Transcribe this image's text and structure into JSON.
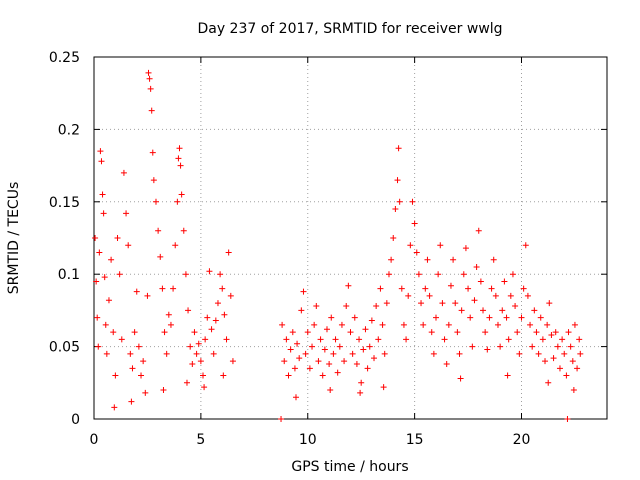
{
  "chart_data": {
    "type": "scatter",
    "title": "Day 237 of 2017, SRMTID for receiver wwlg",
    "xlabel": "GPS time / hours",
    "ylabel": "SRMTID / TECUs",
    "xlim": [
      0,
      24
    ],
    "ylim": [
      0,
      0.25
    ],
    "x_ticks": [
      {
        "value": 0,
        "label": "0"
      },
      {
        "value": 5,
        "label": "5"
      },
      {
        "value": 10,
        "label": "10"
      },
      {
        "value": 15,
        "label": "15"
      },
      {
        "value": 20,
        "label": "20"
      }
    ],
    "y_ticks": [
      {
        "value": 0,
        "label": "0"
      },
      {
        "value": 0.05,
        "label": "0.05"
      },
      {
        "value": 0.1,
        "label": "0.1"
      },
      {
        "value": 0.15,
        "label": "0.15"
      },
      {
        "value": 0.2,
        "label": "0.2"
      },
      {
        "value": 0.25,
        "label": "0.25"
      }
    ],
    "grid": true,
    "marker": "+",
    "series": [
      {
        "name": "SRMTID",
        "color": "#ff0000",
        "points": [
          [
            0.05,
            0.125
          ],
          [
            0.1,
            0.095
          ],
          [
            0.15,
            0.07
          ],
          [
            0.2,
            0.05
          ],
          [
            0.25,
            0.115
          ],
          [
            0.3,
            0.185
          ],
          [
            0.35,
            0.178
          ],
          [
            0.4,
            0.155
          ],
          [
            0.45,
            0.142
          ],
          [
            0.5,
            0.098
          ],
          [
            0.55,
            0.065
          ],
          [
            0.6,
            0.045
          ],
          [
            0.7,
            0.082
          ],
          [
            0.8,
            0.11
          ],
          [
            0.9,
            0.06
          ],
          [
            1.0,
            0.03
          ],
          [
            1.1,
            0.125
          ],
          [
            1.2,
            0.1
          ],
          [
            1.3,
            0.055
          ],
          [
            1.4,
            0.17
          ],
          [
            1.5,
            0.142
          ],
          [
            1.6,
            0.12
          ],
          [
            1.7,
            0.045
          ],
          [
            1.8,
            0.035
          ],
          [
            1.9,
            0.06
          ],
          [
            2.0,
            0.088
          ],
          [
            2.1,
            0.05
          ],
          [
            2.2,
            0.03
          ],
          [
            2.3,
            0.04
          ],
          [
            2.4,
            0.018
          ],
          [
            2.5,
            0.085
          ],
          [
            2.55,
            0.239
          ],
          [
            2.6,
            0.235
          ],
          [
            2.65,
            0.228
          ],
          [
            2.7,
            0.213
          ],
          [
            2.75,
            0.184
          ],
          [
            2.8,
            0.165
          ],
          [
            2.9,
            0.15
          ],
          [
            3.0,
            0.13
          ],
          [
            3.1,
            0.112
          ],
          [
            3.2,
            0.09
          ],
          [
            3.3,
            0.06
          ],
          [
            3.4,
            0.045
          ],
          [
            3.5,
            0.072
          ],
          [
            3.6,
            0.065
          ],
          [
            3.7,
            0.09
          ],
          [
            3.8,
            0.12
          ],
          [
            3.9,
            0.15
          ],
          [
            3.95,
            0.18
          ],
          [
            4.0,
            0.187
          ],
          [
            4.05,
            0.175
          ],
          [
            4.1,
            0.155
          ],
          [
            4.2,
            0.13
          ],
          [
            4.3,
            0.1
          ],
          [
            4.4,
            0.075
          ],
          [
            4.5,
            0.05
          ],
          [
            4.6,
            0.038
          ],
          [
            4.7,
            0.06
          ],
          [
            4.8,
            0.045
          ],
          [
            4.9,
            0.052
          ],
          [
            5.0,
            0.04
          ],
          [
            5.1,
            0.03
          ],
          [
            5.2,
            0.055
          ],
          [
            5.3,
            0.07
          ],
          [
            5.4,
            0.102
          ],
          [
            5.5,
            0.062
          ],
          [
            5.6,
            0.045
          ],
          [
            5.7,
            0.068
          ],
          [
            5.8,
            0.08
          ],
          [
            5.9,
            0.1
          ],
          [
            6.0,
            0.09
          ],
          [
            6.1,
            0.072
          ],
          [
            6.2,
            0.055
          ],
          [
            6.3,
            0.115
          ],
          [
            6.4,
            0.085
          ],
          [
            6.5,
            0.04
          ],
          [
            0.95,
            0.008
          ],
          [
            1.75,
            0.012
          ],
          [
            3.25,
            0.02
          ],
          [
            4.35,
            0.025
          ],
          [
            5.15,
            0.022
          ],
          [
            6.05,
            0.03
          ],
          [
            8.75,
            0.0
          ],
          [
            8.8,
            0.065
          ],
          [
            8.9,
            0.04
          ],
          [
            9.0,
            0.055
          ],
          [
            9.1,
            0.03
          ],
          [
            9.2,
            0.048
          ],
          [
            9.3,
            0.06
          ],
          [
            9.4,
            0.035
          ],
          [
            9.5,
            0.052
          ],
          [
            9.6,
            0.042
          ],
          [
            9.7,
            0.075
          ],
          [
            9.8,
            0.088
          ],
          [
            9.9,
            0.045
          ],
          [
            10.0,
            0.06
          ],
          [
            10.1,
            0.035
          ],
          [
            10.2,
            0.05
          ],
          [
            10.3,
            0.065
          ],
          [
            10.4,
            0.078
          ],
          [
            10.5,
            0.04
          ],
          [
            10.6,
            0.055
          ],
          [
            10.7,
            0.03
          ],
          [
            10.8,
            0.048
          ],
          [
            10.9,
            0.062
          ],
          [
            11.0,
            0.038
          ],
          [
            11.1,
            0.07
          ],
          [
            11.2,
            0.045
          ],
          [
            11.3,
            0.055
          ],
          [
            11.4,
            0.032
          ],
          [
            11.5,
            0.05
          ],
          [
            11.6,
            0.065
          ],
          [
            11.7,
            0.04
          ],
          [
            11.8,
            0.078
          ],
          [
            11.9,
            0.092
          ],
          [
            12.0,
            0.06
          ],
          [
            12.1,
            0.045
          ],
          [
            12.2,
            0.07
          ],
          [
            12.3,
            0.038
          ],
          [
            12.4,
            0.055
          ],
          [
            12.5,
            0.025
          ],
          [
            12.6,
            0.048
          ],
          [
            12.7,
            0.062
          ],
          [
            12.8,
            0.035
          ],
          [
            12.9,
            0.05
          ],
          [
            13.0,
            0.068
          ],
          [
            13.1,
            0.042
          ],
          [
            13.2,
            0.078
          ],
          [
            13.3,
            0.055
          ],
          [
            13.4,
            0.09
          ],
          [
            13.5,
            0.065
          ],
          [
            13.6,
            0.045
          ],
          [
            13.7,
            0.08
          ],
          [
            13.8,
            0.1
          ],
          [
            13.9,
            0.11
          ],
          [
            14.0,
            0.125
          ],
          [
            14.1,
            0.145
          ],
          [
            14.2,
            0.165
          ],
          [
            14.25,
            0.187
          ],
          [
            14.3,
            0.15
          ],
          [
            14.4,
            0.09
          ],
          [
            14.5,
            0.065
          ],
          [
            14.6,
            0.055
          ],
          [
            14.7,
            0.085
          ],
          [
            14.8,
            0.12
          ],
          [
            14.9,
            0.15
          ],
          [
            15.0,
            0.135
          ],
          [
            15.1,
            0.115
          ],
          [
            15.2,
            0.1
          ],
          [
            15.3,
            0.08
          ],
          [
            15.4,
            0.065
          ],
          [
            15.5,
            0.09
          ],
          [
            15.6,
            0.11
          ],
          [
            15.7,
            0.085
          ],
          [
            15.8,
            0.06
          ],
          [
            15.9,
            0.045
          ],
          [
            16.0,
            0.07
          ],
          [
            16.1,
            0.1
          ],
          [
            16.2,
            0.12
          ],
          [
            16.3,
            0.08
          ],
          [
            16.4,
            0.055
          ],
          [
            16.5,
            0.038
          ],
          [
            16.6,
            0.065
          ],
          [
            16.7,
            0.092
          ],
          [
            16.8,
            0.11
          ],
          [
            16.9,
            0.08
          ],
          [
            17.0,
            0.06
          ],
          [
            17.1,
            0.045
          ],
          [
            17.2,
            0.075
          ],
          [
            17.3,
            0.1
          ],
          [
            17.4,
            0.118
          ],
          [
            17.5,
            0.09
          ],
          [
            17.6,
            0.07
          ],
          [
            17.7,
            0.05
          ],
          [
            17.8,
            0.082
          ],
          [
            17.9,
            0.105
          ],
          [
            18.0,
            0.13
          ],
          [
            18.1,
            0.095
          ],
          [
            18.2,
            0.075
          ],
          [
            18.3,
            0.06
          ],
          [
            18.4,
            0.048
          ],
          [
            18.5,
            0.07
          ],
          [
            18.6,
            0.09
          ],
          [
            18.7,
            0.11
          ],
          [
            18.8,
            0.085
          ],
          [
            18.9,
            0.065
          ],
          [
            19.0,
            0.05
          ],
          [
            19.1,
            0.075
          ],
          [
            19.2,
            0.095
          ],
          [
            19.3,
            0.07
          ],
          [
            19.4,
            0.055
          ],
          [
            19.5,
            0.085
          ],
          [
            19.6,
            0.1
          ],
          [
            19.7,
            0.078
          ],
          [
            19.8,
            0.06
          ],
          [
            19.9,
            0.045
          ],
          [
            20.0,
            0.07
          ],
          [
            20.1,
            0.09
          ],
          [
            20.2,
            0.12
          ],
          [
            20.3,
            0.085
          ],
          [
            20.4,
            0.065
          ],
          [
            20.5,
            0.05
          ],
          [
            20.6,
            0.075
          ],
          [
            20.7,
            0.06
          ],
          [
            20.8,
            0.045
          ],
          [
            20.9,
            0.07
          ],
          [
            21.0,
            0.055
          ],
          [
            21.1,
            0.04
          ],
          [
            21.2,
            0.065
          ],
          [
            21.3,
            0.08
          ],
          [
            21.4,
            0.058
          ],
          [
            21.5,
            0.042
          ],
          [
            21.6,
            0.06
          ],
          [
            21.7,
            0.05
          ],
          [
            21.8,
            0.035
          ],
          [
            21.9,
            0.055
          ],
          [
            22.0,
            0.045
          ],
          [
            22.1,
            0.03
          ],
          [
            22.15,
            0.0
          ],
          [
            22.2,
            0.06
          ],
          [
            22.3,
            0.05
          ],
          [
            22.4,
            0.04
          ],
          [
            22.5,
            0.065
          ],
          [
            22.6,
            0.035
          ],
          [
            22.7,
            0.055
          ],
          [
            22.75,
            0.045
          ],
          [
            9.45,
            0.015
          ],
          [
            11.05,
            0.02
          ],
          [
            12.45,
            0.018
          ],
          [
            13.55,
            0.022
          ],
          [
            17.15,
            0.028
          ],
          [
            19.35,
            0.03
          ],
          [
            21.25,
            0.025
          ],
          [
            22.45,
            0.02
          ]
        ]
      }
    ]
  }
}
